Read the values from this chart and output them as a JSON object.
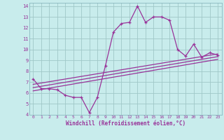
{
  "xlabel": "Windchill (Refroidissement éolien,°C)",
  "bg_color": "#c8ecec",
  "grid_color": "#a0c8c8",
  "line_color": "#993399",
  "spine_color": "#8ab8c0",
  "xlim": [
    -0.5,
    23.5
  ],
  "ylim": [
    4,
    14.3
  ],
  "xticks": [
    0,
    1,
    2,
    3,
    4,
    5,
    6,
    7,
    8,
    9,
    10,
    11,
    12,
    13,
    14,
    15,
    16,
    17,
    18,
    19,
    20,
    21,
    22,
    23
  ],
  "yticks": [
    4,
    5,
    6,
    7,
    8,
    9,
    10,
    11,
    12,
    13,
    14
  ],
  "main_x": [
    0,
    1,
    2,
    3,
    4,
    5,
    6,
    7,
    8,
    9,
    10,
    11,
    12,
    13,
    14,
    15,
    16,
    17,
    18,
    19,
    20,
    21,
    22,
    23
  ],
  "main_y": [
    7.3,
    6.4,
    6.4,
    6.3,
    5.8,
    5.6,
    5.6,
    4.2,
    5.6,
    8.5,
    11.6,
    12.4,
    12.5,
    14.0,
    12.5,
    13.0,
    13.0,
    12.7,
    10.0,
    9.4,
    10.5,
    9.3,
    9.7,
    9.5
  ],
  "trend1_x": [
    0,
    23
  ],
  "trend1_y": [
    6.2,
    9.1
  ],
  "trend2_x": [
    0,
    23
  ],
  "trend2_y": [
    6.5,
    9.35
  ],
  "trend3_x": [
    0,
    23
  ],
  "trend3_y": [
    6.8,
    9.6
  ]
}
